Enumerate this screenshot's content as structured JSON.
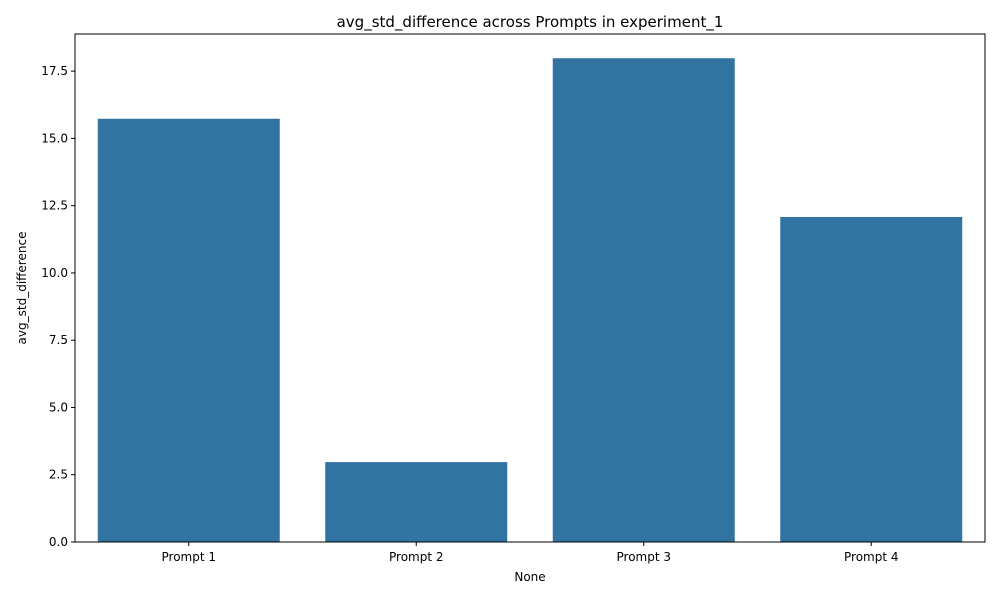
{
  "chart_data": {
    "type": "bar",
    "title": "avg_std_difference across Prompts in experiment_1",
    "xlabel": "None",
    "ylabel": "avg_std_difference",
    "categories": [
      "Prompt 1",
      "Prompt 2",
      "Prompt 3",
      "Prompt 4"
    ],
    "values": [
      15.73,
      2.97,
      17.98,
      12.08
    ],
    "ylim": [
      0,
      18.88
    ],
    "yticks": [
      0.0,
      2.5,
      5.0,
      7.5,
      10.0,
      12.5,
      15.0,
      17.5
    ],
    "ytick_labels": [
      "0.0",
      "2.5",
      "5.0",
      "7.5",
      "10.0",
      "12.5",
      "15.0",
      "17.5"
    ],
    "bar_color": "#3274a1",
    "grid": false,
    "legend": "none"
  }
}
